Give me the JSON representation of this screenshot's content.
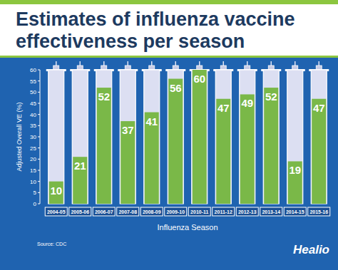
{
  "chart_data": {
    "type": "bar",
    "title": "Estimates of influenza vaccine effectiveness per season",
    "categories": [
      "2004-05",
      "2005-06",
      "2006-07",
      "2007-08",
      "2008-09",
      "2009-10",
      "2010-11",
      "2011-12",
      "2012-13",
      "2013-14",
      "2014-15",
      "2015-16"
    ],
    "values": [
      10,
      21,
      52,
      37,
      41,
      56,
      60,
      47,
      49,
      52,
      19,
      47
    ],
    "color": "#7ab848",
    "ylim": [
      0,
      60
    ],
    "yticks": [
      0,
      5,
      10,
      15,
      20,
      25,
      30,
      35,
      40,
      45,
      50,
      55,
      60
    ],
    "x_label": "Influenza Season",
    "y_label": "Adjusted Overall VE (%)",
    "source": "Source: CDC",
    "brand": "Healio",
    "grid": false,
    "data_labels": true
  }
}
